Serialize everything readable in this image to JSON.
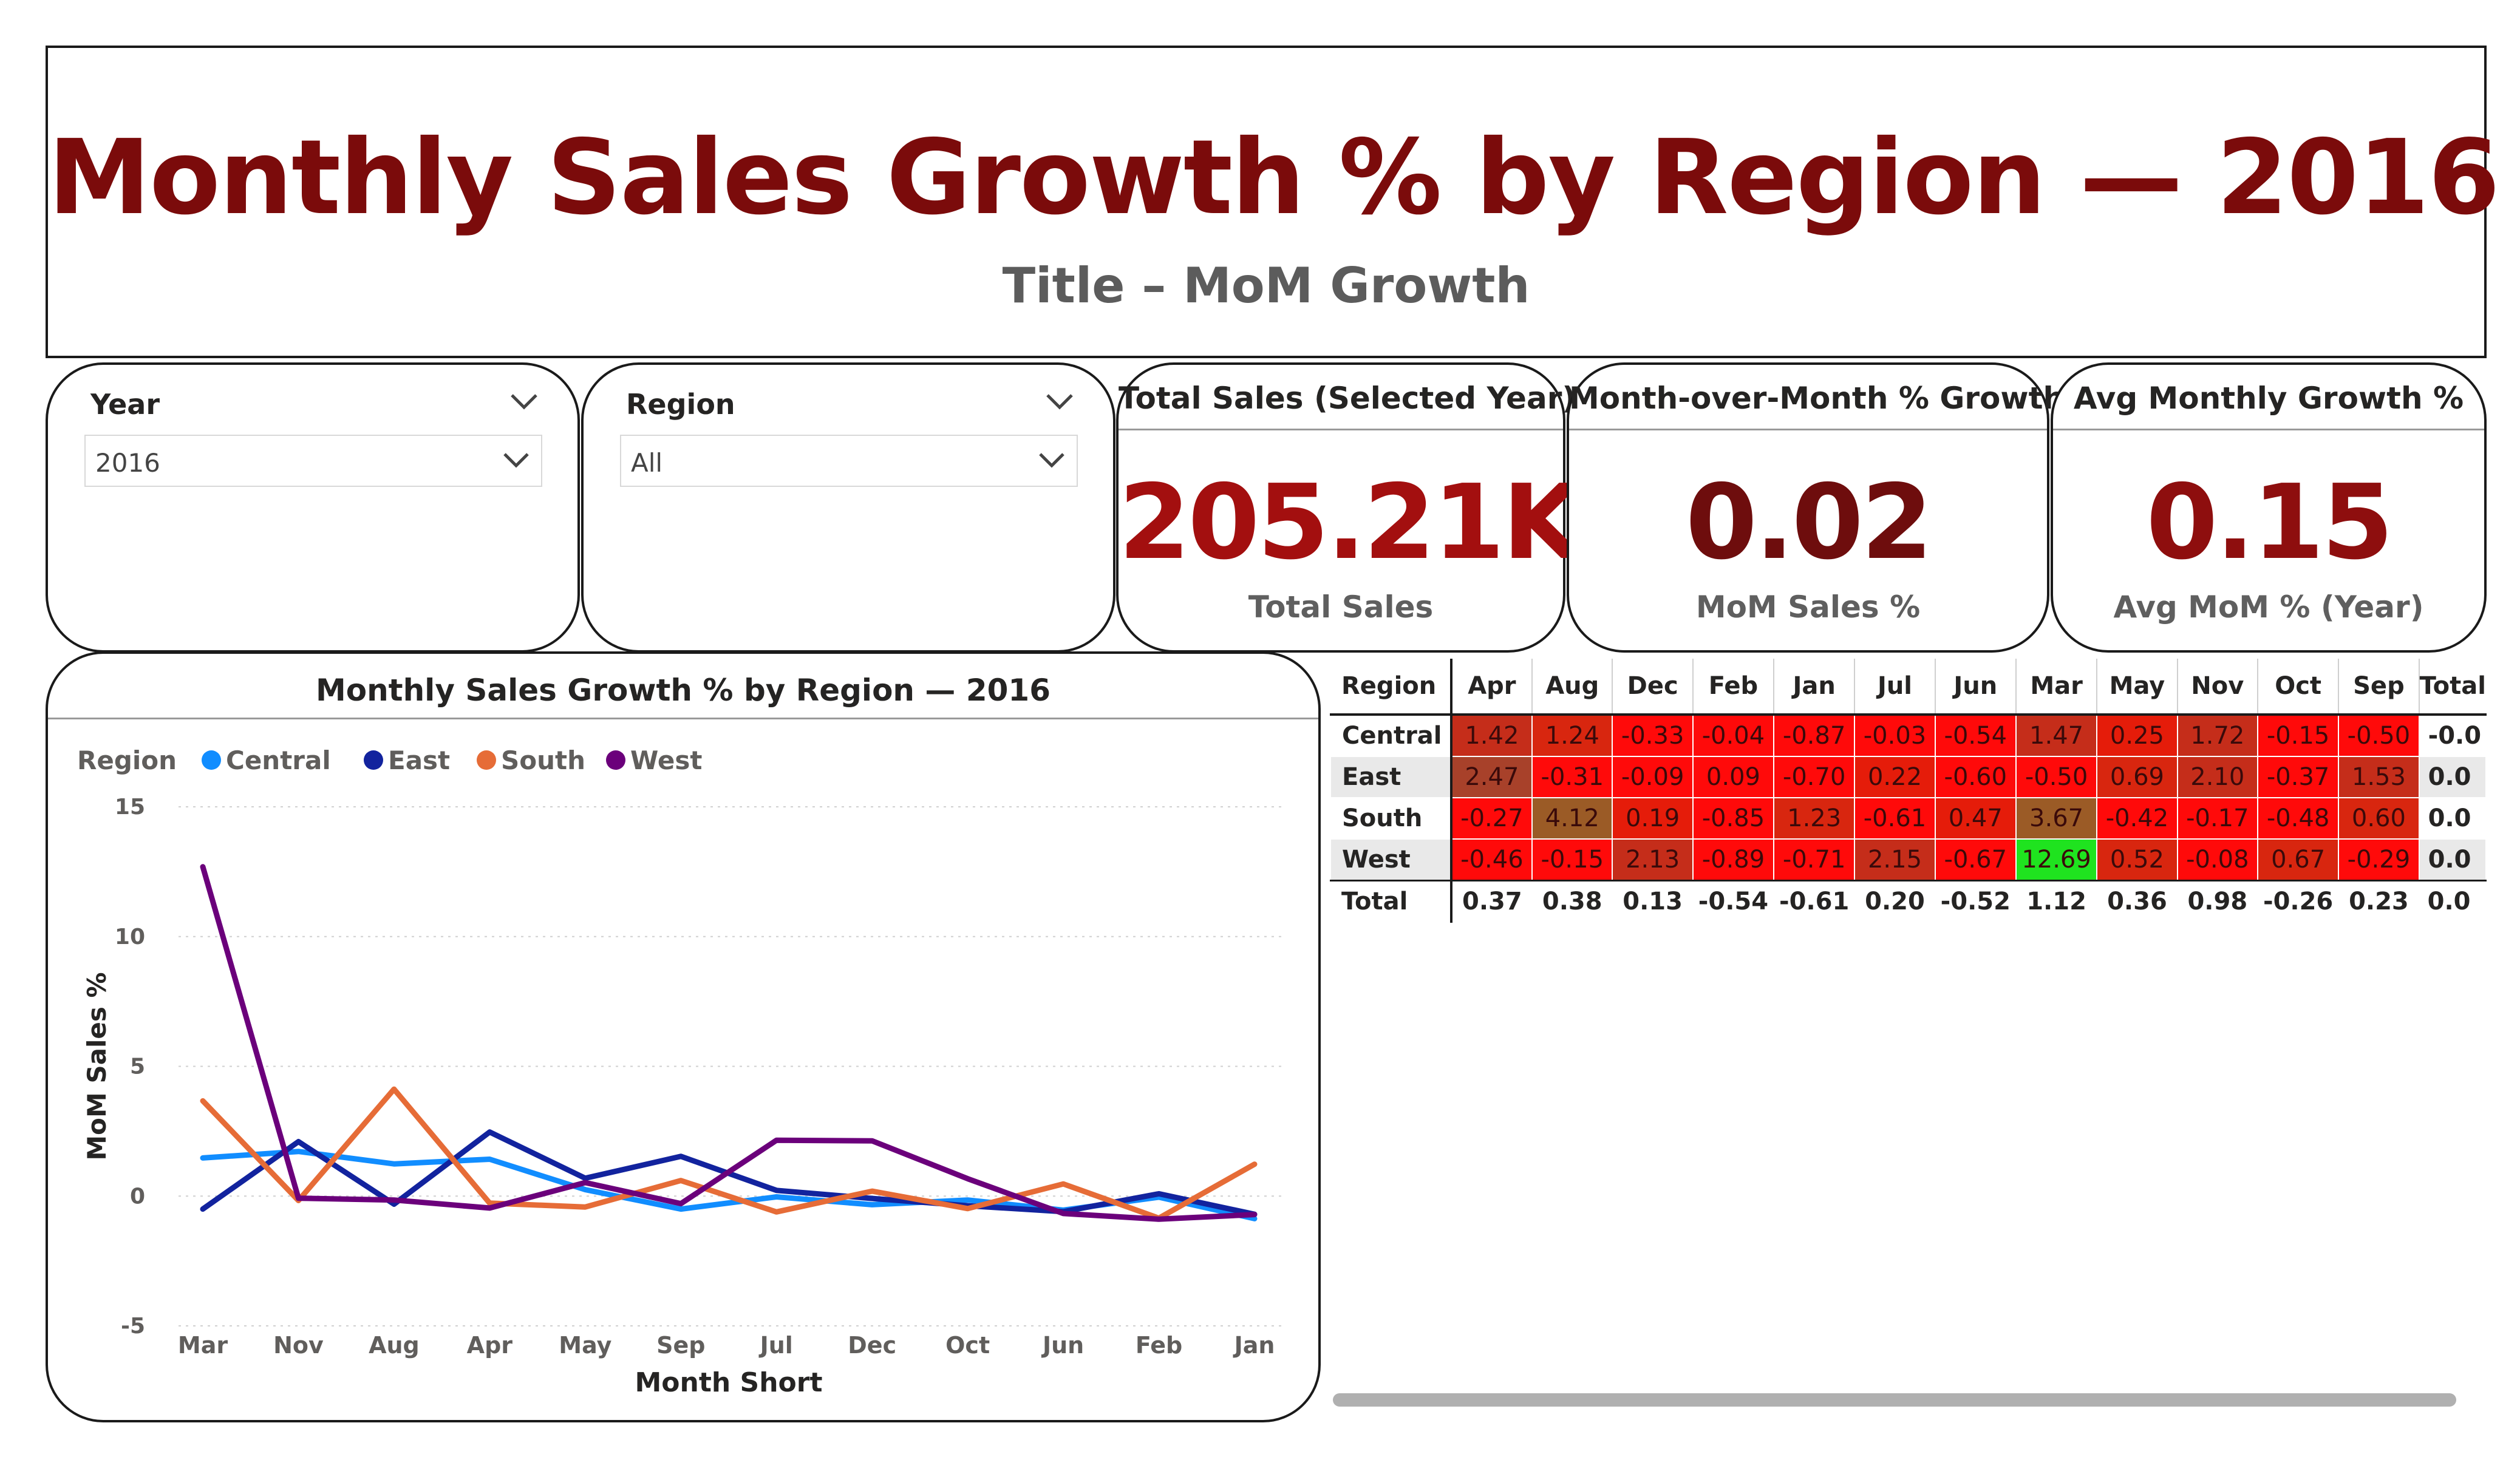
{
  "header": {
    "title": "Monthly Sales Growth % by Region — 2016",
    "subtitle": "Title – MoM Growth"
  },
  "slicers": [
    {
      "label": "Year",
      "value": "2016"
    },
    {
      "label": "Region",
      "value": "All"
    }
  ],
  "kpis": [
    {
      "title": "Total Sales (Selected Year)",
      "value": "205.21K",
      "label": "Total Sales",
      "color": "#a30f0f"
    },
    {
      "title": "Month-over-Month % Growth",
      "value": "0.02",
      "label": "MoM Sales %",
      "color": "#6e0d0d"
    },
    {
      "title": "Avg Monthly Growth %",
      "value": "0.15",
      "label": "Avg MoM % (Year)",
      "color": "#8e0e0e"
    }
  ],
  "chart_card": {
    "title": "Monthly Sales Growth % by Region — 2016"
  },
  "chart_data": {
    "type": "line",
    "title": "Monthly Sales Growth % by Region — 2016",
    "xlabel": "Month Short",
    "ylabel": "MoM Sales %",
    "legend_title": "Region",
    "legend_position": "top-left",
    "ylim": [
      -5,
      15
    ],
    "yticks": [
      15,
      10,
      5,
      0,
      -5
    ],
    "grid": true,
    "categories": [
      "Mar",
      "Nov",
      "Aug",
      "Apr",
      "May",
      "Sep",
      "Jul",
      "Dec",
      "Oct",
      "Jun",
      "Feb",
      "Jan"
    ],
    "series": [
      {
        "name": "Central",
        "color": "#118DFF",
        "values": [
          1.47,
          1.72,
          1.24,
          1.42,
          0.25,
          -0.5,
          -0.03,
          -0.33,
          -0.15,
          -0.54,
          -0.04,
          -0.87
        ]
      },
      {
        "name": "East",
        "color": "#12239E",
        "values": [
          -0.5,
          2.1,
          -0.31,
          2.47,
          0.69,
          1.53,
          0.22,
          -0.09,
          -0.37,
          -0.6,
          0.09,
          -0.7
        ]
      },
      {
        "name": "South",
        "color": "#E66C37",
        "values": [
          3.67,
          -0.17,
          4.12,
          -0.27,
          -0.42,
          0.6,
          -0.61,
          0.19,
          -0.48,
          0.47,
          -0.85,
          1.23
        ]
      },
      {
        "name": "West",
        "color": "#6B007B",
        "values": [
          12.69,
          -0.08,
          -0.15,
          -0.46,
          0.52,
          -0.29,
          2.15,
          2.13,
          0.67,
          -0.67,
          -0.89,
          -0.71
        ]
      }
    ]
  },
  "matrix": {
    "corner": "Region",
    "columns": [
      "Apr",
      "Aug",
      "Dec",
      "Feb",
      "Jan",
      "Jul",
      "Jun",
      "Mar",
      "May",
      "Nov",
      "Oct",
      "Sep",
      "Total"
    ],
    "rows": [
      {
        "region": "Central",
        "values": [
          "1.42",
          "1.24",
          "-0.33",
          "-0.04",
          "-0.87",
          "-0.03",
          "-0.54",
          "1.47",
          "0.25",
          "1.72",
          "-0.15",
          "-0.50",
          "-0.0"
        ]
      },
      {
        "region": "East",
        "values": [
          "2.47",
          "-0.31",
          "-0.09",
          "0.09",
          "-0.70",
          "0.22",
          "-0.60",
          "-0.50",
          "0.69",
          "2.10",
          "-0.37",
          "1.53",
          "0.0"
        ]
      },
      {
        "region": "South",
        "values": [
          "-0.27",
          "4.12",
          "0.19",
          "-0.85",
          "1.23",
          "-0.61",
          "0.47",
          "3.67",
          "-0.42",
          "-0.17",
          "-0.48",
          "0.60",
          "0.0"
        ]
      },
      {
        "region": "West",
        "values": [
          "-0.46",
          "-0.15",
          "2.13",
          "-0.89",
          "-0.71",
          "2.15",
          "-0.67",
          "12.69",
          "0.52",
          "-0.08",
          "0.67",
          "-0.29",
          "0.0"
        ]
      }
    ],
    "total": {
      "region": "Total",
      "values": [
        "0.37",
        "0.38",
        "0.13",
        "-0.54",
        "-0.61",
        "0.20",
        "-0.52",
        "1.12",
        "0.36",
        "0.98",
        "-0.26",
        "0.23",
        "0.0"
      ]
    }
  }
}
